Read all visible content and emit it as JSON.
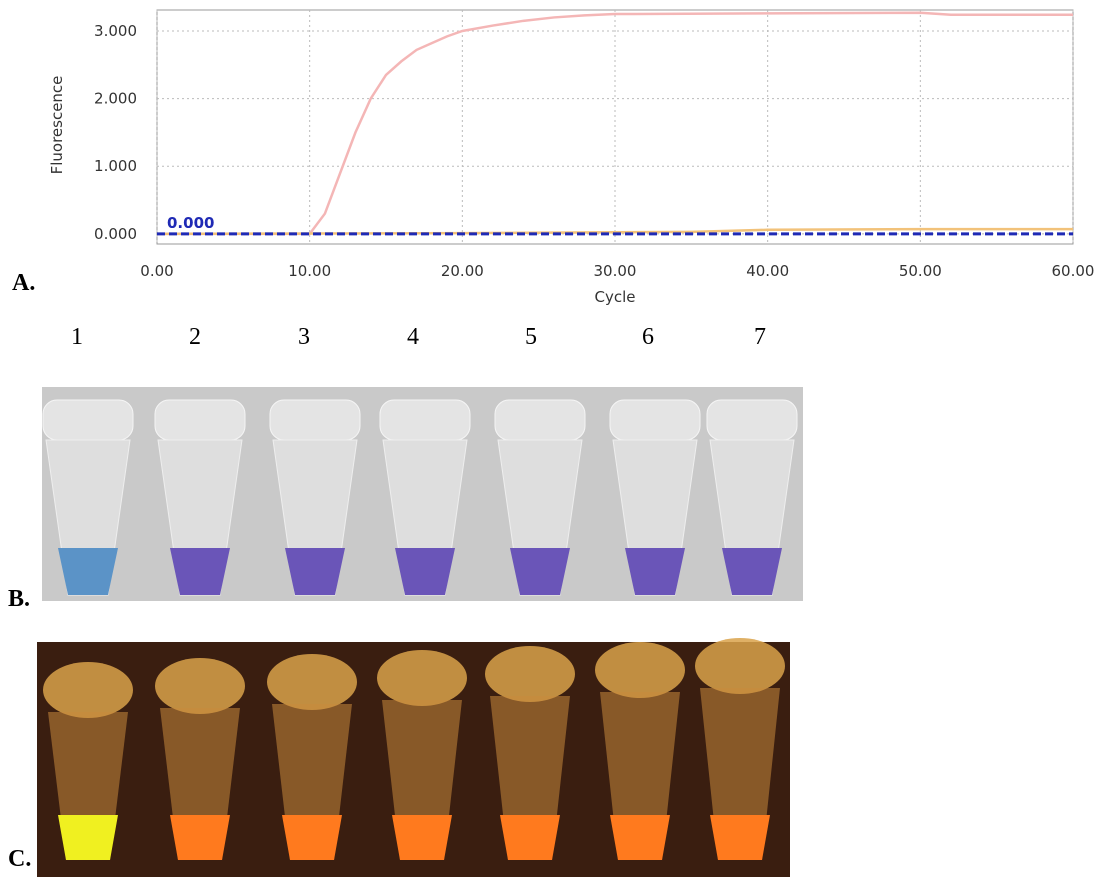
{
  "chart_data": {
    "type": "line",
    "x_label": "Cycle",
    "y_label": "Fluorescence",
    "xlim": [
      0,
      60
    ],
    "ylim": [
      -0.15,
      3.31
    ],
    "xticks": [
      {
        "value": 0,
        "label": "0.00"
      },
      {
        "value": 10,
        "label": "10.00"
      },
      {
        "value": 20,
        "label": "20.00"
      },
      {
        "value": 30,
        "label": "30.00"
      },
      {
        "value": 40,
        "label": "40.00"
      },
      {
        "value": 50,
        "label": "50.00"
      },
      {
        "value": 60,
        "label": "60.00"
      }
    ],
    "yticks": [
      {
        "value": 0,
        "label": "0.000"
      },
      {
        "value": 1,
        "label": "1.000"
      },
      {
        "value": 2,
        "label": "2.000"
      },
      {
        "value": 3,
        "label": "3.000"
      }
    ],
    "grid": true,
    "series": [
      {
        "color": "#f4b6b6",
        "x": [
          0,
          5,
          10,
          11,
          12,
          13,
          14,
          15,
          16,
          17,
          18,
          19,
          20,
          22,
          24,
          26,
          28,
          30,
          40,
          50,
          52,
          60
        ],
        "values": [
          0,
          0,
          0,
          0.3,
          0.9,
          1.5,
          2.0,
          2.35,
          2.55,
          2.72,
          2.82,
          2.92,
          3.0,
          3.08,
          3.15,
          3.2,
          3.23,
          3.25,
          3.26,
          3.27,
          3.24,
          3.24
        ]
      },
      {
        "color": "#f2c27a",
        "x": [
          0,
          20,
          35,
          40,
          50,
          60
        ],
        "values": [
          0.0,
          0.01,
          0.03,
          0.06,
          0.07,
          0.07
        ]
      }
    ],
    "threshold": {
      "value": 0,
      "label": "0.000",
      "color": "#1f2ab5"
    }
  },
  "panels": {
    "a": "A.",
    "b": "B.",
    "c": "C."
  },
  "tube_numbers": [
    "1",
    "2",
    "3",
    "4",
    "5",
    "6",
    "7"
  ]
}
